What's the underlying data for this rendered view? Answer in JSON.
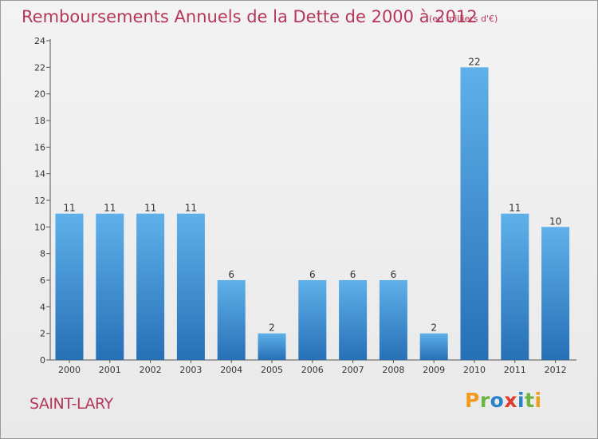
{
  "chart_data": {
    "type": "bar",
    "title": "Remboursements Annuels de la Dette de 2000 à 2012",
    "subtitle": "(en milliers d'€)",
    "categories": [
      "2000",
      "2001",
      "2002",
      "2003",
      "2004",
      "2005",
      "2006",
      "2007",
      "2008",
      "2009",
      "2010",
      "2011",
      "2012"
    ],
    "values": [
      11,
      11,
      11,
      11,
      6,
      2,
      6,
      6,
      6,
      2,
      22,
      11,
      10
    ],
    "yticks": [
      0,
      2,
      4,
      6,
      8,
      10,
      12,
      14,
      16,
      18,
      20,
      22,
      24
    ],
    "ylim": [
      0,
      24
    ],
    "grid": false,
    "bar_color": "#3d8fd6",
    "bar_color_light": "#5fb0ea",
    "bar_color_dark": "#2670b6"
  },
  "commune": "SAINT-LARY",
  "logo": {
    "p": "P",
    "r": "r",
    "o": "o",
    "x": "x",
    "i1": "i",
    "t": "t",
    "i2": "i"
  }
}
